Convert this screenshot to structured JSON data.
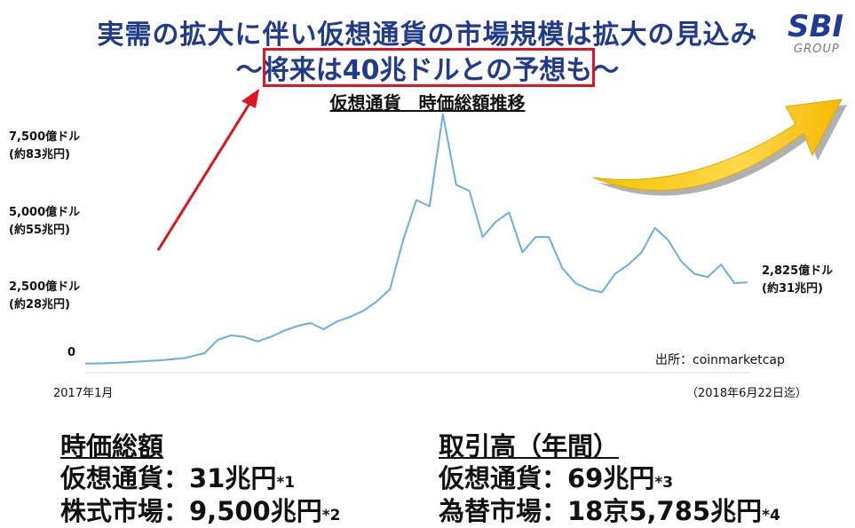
{
  "header": {
    "title_line1": "実需の拡大に伴い仮想通貨の市場規模は拡大の見込み",
    "title_line2": "～将来は40兆ドルとの予想も～"
  },
  "logo": {
    "brand": "SBI",
    "sub": "GROUP",
    "color": "#1e3c96"
  },
  "chart_data": {
    "type": "line",
    "title": "仮想通貨　時価総額推移",
    "y_tick_labels": [
      {
        "value": 0,
        "lines": [
          "0"
        ]
      },
      {
        "value": 2500,
        "lines": [
          "2,500億ドル",
          "(約28兆円)"
        ]
      },
      {
        "value": 5000,
        "lines": [
          "5,000億ドル",
          "(約55兆円)"
        ]
      },
      {
        "value": 7500,
        "lines": [
          "7,500億ドル",
          "(約83兆円)"
        ]
      }
    ],
    "ylim": [
      0,
      8200
    ],
    "x_start_label": "2017年1月",
    "x_end_label": "（2018年6月22日迄）",
    "end_value_label": [
      "2,825億ドル",
      "(約31兆円)"
    ],
    "source": "出所：coinmarketcap",
    "line_color": "#6aaee0",
    "x": [
      0,
      0.03,
      0.06,
      0.09,
      0.12,
      0.15,
      0.18,
      0.2,
      0.22,
      0.24,
      0.26,
      0.28,
      0.3,
      0.32,
      0.34,
      0.36,
      0.38,
      0.4,
      0.42,
      0.44,
      0.46,
      0.48,
      0.5,
      0.52,
      0.54,
      0.56,
      0.58,
      0.6,
      0.62,
      0.64,
      0.66,
      0.68,
      0.7,
      0.72,
      0.74,
      0.76,
      0.78,
      0.8,
      0.82,
      0.84,
      0.86,
      0.88,
      0.9,
      0.92,
      0.94,
      0.96,
      0.98,
      1.0
    ],
    "series": [
      {
        "values": [
          180,
          190,
          220,
          260,
          300,
          360,
          520,
          950,
          1100,
          1050,
          900,
          1050,
          1250,
          1400,
          1500,
          1300,
          1550,
          1700,
          1900,
          2200,
          2600,
          4200,
          5500,
          5300,
          8300,
          6000,
          5800,
          4300,
          4800,
          5100,
          3800,
          4300,
          4300,
          3300,
          2800,
          2600,
          2500,
          3100,
          3400,
          3800,
          4600,
          4200,
          3500,
          3100,
          3000,
          3400,
          2800,
          2825
        ]
      }
    ]
  },
  "stats": {
    "left": {
      "heading": "時価総額",
      "rows": [
        {
          "label": "仮想通貨：31兆円",
          "note": "*1"
        },
        {
          "label": "株式市場：9,500兆円",
          "note": "*2"
        }
      ]
    },
    "right": {
      "heading": "取引高（年間）",
      "rows": [
        {
          "label": "仮想通貨：69兆円",
          "note": "*3"
        },
        {
          "label": "為替市場：18京5,785兆円",
          "note": "*4"
        }
      ]
    }
  }
}
